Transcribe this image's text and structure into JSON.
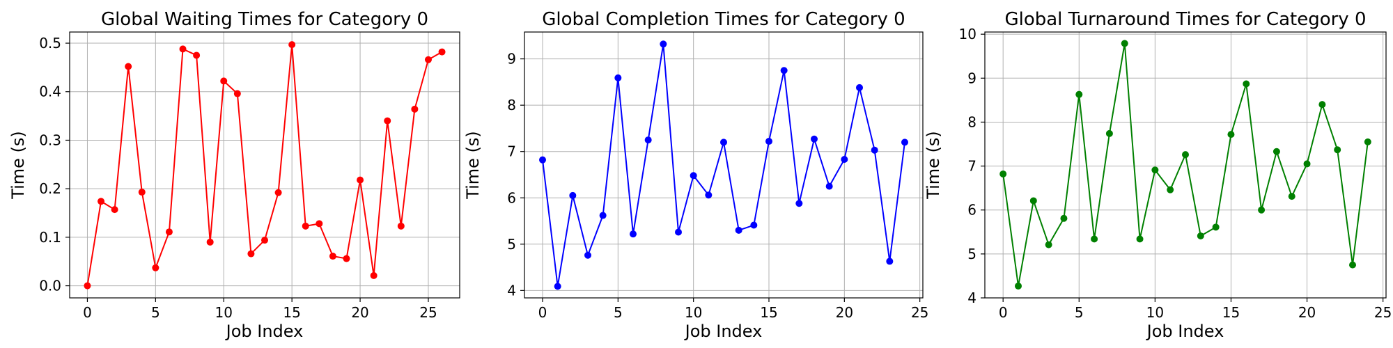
{
  "chart_data": [
    {
      "type": "line",
      "title": "Global Waiting Times for Category 0",
      "xlabel": "Job Index",
      "ylabel": "Time (s)",
      "xlim": [
        -1.3,
        27.3
      ],
      "ylim": [
        -0.025,
        0.523
      ],
      "xticks": [
        0,
        5,
        10,
        15,
        20,
        25
      ],
      "yticks": [
        0.0,
        0.1,
        0.2,
        0.3,
        0.4,
        0.5
      ],
      "ytick_labels": [
        "0.0",
        "0.1",
        "0.2",
        "0.3",
        "0.4",
        "0.5"
      ],
      "grid": true,
      "color": "#ff0000",
      "series": [
        {
          "x": [
            0,
            1,
            2,
            3,
            4,
            5,
            6,
            7,
            8,
            9,
            10,
            11,
            12,
            13,
            14,
            15,
            16,
            17,
            18,
            19,
            20,
            21,
            22,
            23,
            24,
            25,
            26
          ],
          "values": [
            0.0,
            0.174,
            0.157,
            0.452,
            0.193,
            0.037,
            0.111,
            0.488,
            0.475,
            0.09,
            0.422,
            0.396,
            0.066,
            0.094,
            0.192,
            0.497,
            0.123,
            0.128,
            0.061,
            0.056,
            0.218,
            0.021,
            0.34,
            0.123,
            0.364,
            0.466,
            0.482
          ]
        }
      ]
    },
    {
      "type": "line",
      "title": "Global Completion Times for Category 0",
      "xlabel": "Job Index",
      "ylabel": "Time (s)",
      "xlim": [
        -1.2,
        25.2
      ],
      "ylim": [
        3.84,
        9.58
      ],
      "xticks": [
        0,
        5,
        10,
        15,
        20,
        25
      ],
      "yticks": [
        4,
        5,
        6,
        7,
        8,
        9
      ],
      "ytick_labels": [
        "4",
        "5",
        "6",
        "7",
        "8",
        "9"
      ],
      "grid": true,
      "color": "#0000ff",
      "series": [
        {
          "x": [
            0,
            1,
            2,
            3,
            4,
            5,
            6,
            7,
            8,
            9,
            10,
            11,
            12,
            13,
            14,
            15,
            16,
            17,
            18,
            19,
            20,
            21,
            22,
            23,
            24
          ],
          "values": [
            6.82,
            4.09,
            6.05,
            4.76,
            5.62,
            8.59,
            5.22,
            7.25,
            9.32,
            5.26,
            6.48,
            6.06,
            7.2,
            5.3,
            5.41,
            7.22,
            8.75,
            5.88,
            7.27,
            6.25,
            6.83,
            8.38,
            7.03,
            4.63,
            7.2
          ]
        }
      ]
    },
    {
      "type": "line",
      "title": "Global Turnaround Times for Category 0",
      "xlabel": "Job Index",
      "ylabel": "Time (s)",
      "xlim": [
        -1.2,
        25.2
      ],
      "ylim": [
        4.0,
        10.05
      ],
      "xticks": [
        0,
        5,
        10,
        15,
        20,
        25
      ],
      "yticks": [
        4,
        5,
        6,
        7,
        8,
        9,
        10
      ],
      "ytick_labels": [
        "4",
        "5",
        "6",
        "7",
        "8",
        "9",
        "10"
      ],
      "grid": true,
      "color": "#008000",
      "series": [
        {
          "x": [
            0,
            1,
            2,
            3,
            4,
            5,
            6,
            7,
            8,
            9,
            10,
            11,
            12,
            13,
            14,
            15,
            16,
            17,
            18,
            19,
            20,
            21,
            22,
            23,
            24
          ],
          "values": [
            6.82,
            4.27,
            6.21,
            5.21,
            5.81,
            8.63,
            5.34,
            7.74,
            9.79,
            5.34,
            6.91,
            6.46,
            7.26,
            5.41,
            5.61,
            7.72,
            8.87,
            6.0,
            7.33,
            6.31,
            7.05,
            8.4,
            7.37,
            4.75,
            7.55
          ]
        }
      ]
    }
  ]
}
